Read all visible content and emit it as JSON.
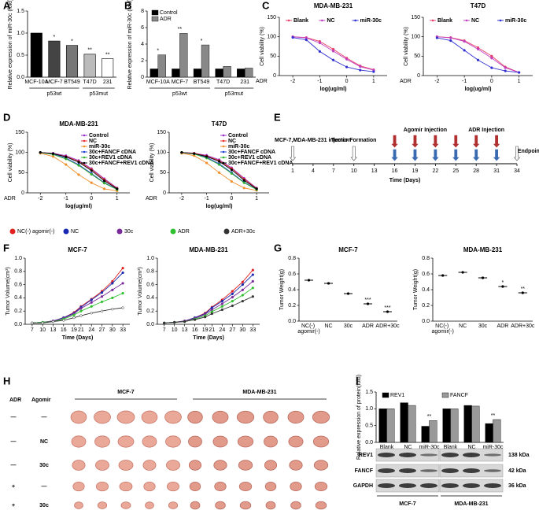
{
  "panels": [
    "A",
    "B",
    "C",
    "D",
    "E",
    "F",
    "G",
    "H",
    "I"
  ],
  "chart_data": [
    {
      "type": "bar",
      "ylabel": "Relative expression of miR-30c (fold)",
      "categories": [
        "MCF-10A",
        "MCF-7",
        "BT549",
        "T47D",
        "231"
      ],
      "values": [
        1.0,
        0.82,
        0.72,
        0.52,
        0.42
      ],
      "colors": [
        "#000000",
        "#444444",
        "#777777",
        "#bbbbbb",
        "#ffffff"
      ],
      "annotations": [
        null,
        "*",
        "*",
        "**",
        "**"
      ],
      "group_labels": [
        "p53wt",
        "p53mut"
      ],
      "ylim": [
        0,
        1.5
      ],
      "yticks": [
        {
          "value": 0,
          "label": "0.0"
        },
        0.5,
        {
          "value": 1,
          "label": "1.0"
        },
        1.5
      ]
    },
    {
      "type": "bar",
      "ylabel": "Relative expression of miR-30c (fold)",
      "categories": [
        "MCF-10A",
        "MCF-7",
        "BT549",
        "T47D",
        "231"
      ],
      "series": [
        {
          "name": "Control",
          "color": "#000000",
          "values": [
            1,
            1,
            1,
            1,
            1
          ]
        },
        {
          "name": "ADR",
          "color": "#888888",
          "values": [
            2.7,
            5.3,
            3.9,
            1.3,
            1.1
          ]
        }
      ],
      "annotations": [
        "*",
        "**",
        "*",
        null,
        null
      ],
      "group_labels": [
        "p53wt",
        "p53mut"
      ],
      "legend": "upper left",
      "ylim": [
        0,
        8
      ],
      "yticks": [
        0,
        2,
        4,
        6,
        8
      ]
    },
    {
      "type": "line",
      "title": "MDA-MB-231",
      "ylabel": "Cell viability (%)",
      "xlabel": "log(ug/ml)",
      "x_note": "ADR",
      "legend": "top",
      "x": [
        -2,
        -1.5,
        -1,
        -0.5,
        0,
        0.5,
        1
      ],
      "series": [
        {
          "name": "Blank",
          "color": "#e8406a",
          "values": [
            100,
            98,
            88,
            68,
            45,
            25,
            15
          ]
        },
        {
          "name": "NC",
          "color": "#c040c0",
          "values": [
            100,
            97,
            84,
            63,
            42,
            23,
            14
          ]
        },
        {
          "name": "miR-30c",
          "color": "#3030d0",
          "values": [
            98,
            92,
            62,
            40,
            22,
            14,
            10
          ]
        }
      ],
      "xlim": [
        -2.5,
        1.5
      ],
      "xticks": [
        -2,
        -1,
        0,
        1
      ],
      "ylim": [
        0,
        150
      ],
      "yticks": [
        0,
        50,
        100,
        150
      ]
    },
    {
      "type": "line",
      "title": "T47D",
      "ylabel": "Cell viability (%)",
      "xlabel": "log(ug/ml)",
      "x_note": "ADR",
      "legend": "top",
      "x": [
        -2,
        -1.5,
        -1,
        -0.5,
        0,
        0.5,
        1
      ],
      "series": [
        {
          "name": "Blank",
          "color": "#e8406a",
          "values": [
            100,
            98,
            90,
            72,
            50,
            22,
            8
          ]
        },
        {
          "name": "NC",
          "color": "#c040c0",
          "values": [
            100,
            97,
            88,
            68,
            45,
            20,
            8
          ]
        },
        {
          "name": "miR-30c",
          "color": "#3030d0",
          "values": [
            97,
            90,
            65,
            40,
            20,
            12,
            8
          ]
        }
      ],
      "xlim": [
        -2.5,
        1.5
      ],
      "xticks": [
        -2,
        -1,
        0,
        1
      ],
      "ylim": [
        0,
        150
      ],
      "yticks": [
        0,
        50,
        100,
        150
      ]
    },
    {
      "type": "line",
      "title": "MDA-MB-231",
      "ylabel": "Cell viability (%)",
      "xlabel": "log(ug/ml)",
      "x_note": "ADR",
      "legend": "upper right",
      "x": [
        -2,
        -1.5,
        -1,
        -0.5,
        0,
        0.5,
        1
      ],
      "series": [
        {
          "name": "Control",
          "color": "#9b30c8",
          "values": [
            100,
            98,
            92,
            80,
            60,
            35,
            12
          ]
        },
        {
          "name": "NC",
          "color": "#e83030",
          "values": [
            100,
            97,
            90,
            78,
            58,
            33,
            11
          ]
        },
        {
          "name": "miR-30c",
          "color": "#f0902a",
          "values": [
            98,
            90,
            70,
            45,
            25,
            10,
            5
          ]
        },
        {
          "name": "30c+FANCF cDNA",
          "color": "#2040d0",
          "values": [
            100,
            96,
            86,
            70,
            48,
            25,
            9
          ]
        },
        {
          "name": "30c+REV1 cDNA",
          "color": "#30b030",
          "values": [
            100,
            95,
            84,
            68,
            46,
            24,
            8
          ]
        },
        {
          "name": "30c+FANCF+REV1 cDNA",
          "color": "#000000",
          "values": [
            100,
            97,
            89,
            76,
            55,
            30,
            10
          ]
        }
      ],
      "xlim": [
        -2.5,
        1.5
      ],
      "xticks": [
        -2,
        -1,
        0,
        1
      ],
      "ylim": [
        0,
        150
      ],
      "yticks": [
        0,
        50,
        100,
        150
      ]
    },
    {
      "type": "line",
      "title": "T47D",
      "ylabel": "Cell viability (%)",
      "xlabel": "log(ug/ml)",
      "x_note": "ADR",
      "legend": "upper right",
      "x": [
        -2,
        -1.5,
        -1,
        -0.5,
        0,
        0.5,
        1
      ],
      "series": [
        {
          "name": "Control",
          "color": "#9b30c8",
          "values": [
            100,
            98,
            93,
            82,
            62,
            36,
            12
          ]
        },
        {
          "name": "NC",
          "color": "#e83030",
          "values": [
            100,
            98,
            91,
            80,
            60,
            34,
            11
          ]
        },
        {
          "name": "miR-30c",
          "color": "#f0902a",
          "values": [
            98,
            92,
            74,
            50,
            28,
            12,
            6
          ]
        },
        {
          "name": "30c+FANCF cDNA",
          "color": "#2040d0",
          "values": [
            100,
            97,
            88,
            72,
            50,
            26,
            9
          ]
        },
        {
          "name": "30c+REV1 cDNA",
          "color": "#30b030",
          "values": [
            100,
            96,
            86,
            70,
            48,
            25,
            8
          ]
        },
        {
          "name": "30c+FANCF+REV1 cDNA",
          "color": "#000000",
          "values": [
            100,
            97,
            90,
            78,
            57,
            31,
            10
          ]
        }
      ],
      "xlim": [
        -2.5,
        1.5
      ],
      "xticks": [
        -2,
        -1,
        0,
        1
      ],
      "ylim": [
        0,
        150
      ],
      "yticks": [
        0,
        50,
        100,
        150
      ]
    },
    {
      "type": "line",
      "title": "MCF-7",
      "ylabel": "Tumor Volume(cm³)",
      "xlabel": "Time (Days)",
      "legend": "above",
      "x": [
        7,
        10,
        13,
        16,
        19,
        21,
        24,
        27,
        30,
        33
      ],
      "series": [
        {
          "name": "NC(-) agomir(-)",
          "color": "#e02020",
          "values": [
            0.02,
            0.03,
            0.05,
            0.1,
            0.18,
            0.27,
            0.38,
            0.5,
            0.65,
            0.85
          ]
        },
        {
          "name": "NC",
          "color": "#1a2ab0",
          "values": [
            0.02,
            0.03,
            0.05,
            0.1,
            0.17,
            0.26,
            0.37,
            0.48,
            0.62,
            0.78
          ]
        },
        {
          "name": "30c",
          "color": "#7a2a9a",
          "values": [
            0.02,
            0.03,
            0.05,
            0.09,
            0.16,
            0.24,
            0.33,
            0.42,
            0.52,
            0.62
          ]
        },
        {
          "name": "ADR",
          "color": "#30c030",
          "values": [
            0.02,
            0.03,
            0.04,
            0.08,
            0.14,
            0.2,
            0.27,
            0.34,
            0.4,
            0.47
          ]
        },
        {
          "name": "ADR+30c",
          "color": "#333333",
          "values": [
            0.02,
            0.02,
            0.04,
            0.06,
            0.1,
            0.13,
            0.17,
            0.2,
            0.23,
            0.25
          ]
        }
      ],
      "xlim": [
        5,
        35
      ],
      "xticks": [
        7,
        10,
        13,
        16,
        19,
        21,
        24,
        27,
        30,
        33
      ],
      "ylim": [
        0,
        1
      ],
      "yticks": [
        {
          "value": 0,
          "label": "0.0"
        },
        0.2,
        0.4,
        0.6,
        0.8,
        {
          "value": 1,
          "label": "1.0"
        }
      ]
    },
    {
      "type": "line",
      "title": "MDA-MB-231",
      "ylabel": "Tumor Volume(cm³)",
      "xlabel": "Time (Days)",
      "x": [
        7,
        10,
        13,
        16,
        19,
        21,
        24,
        27,
        30,
        33
      ],
      "series": [
        {
          "color": "#e02020",
          "values": [
            0.02,
            0.03,
            0.05,
            0.1,
            0.17,
            0.26,
            0.37,
            0.5,
            0.64,
            0.82
          ]
        },
        {
          "color": "#1a2ab0",
          "values": [
            0.02,
            0.03,
            0.05,
            0.1,
            0.16,
            0.25,
            0.35,
            0.46,
            0.6,
            0.75
          ]
        },
        {
          "color": "#7a2a9a",
          "values": [
            0.02,
            0.03,
            0.05,
            0.09,
            0.15,
            0.22,
            0.31,
            0.41,
            0.52,
            0.65
          ]
        },
        {
          "color": "#30c030",
          "values": [
            0.02,
            0.03,
            0.04,
            0.08,
            0.13,
            0.19,
            0.27,
            0.35,
            0.44,
            0.55
          ]
        },
        {
          "color": "#333333",
          "values": [
            0.02,
            0.03,
            0.04,
            0.07,
            0.11,
            0.16,
            0.22,
            0.28,
            0.35,
            0.42
          ]
        }
      ],
      "xlim": [
        5,
        35
      ],
      "xticks": [
        7,
        10,
        13,
        16,
        19,
        21,
        24,
        27,
        30,
        33
      ],
      "ylim": [
        0,
        1
      ],
      "yticks": [
        {
          "value": 0,
          "label": "0.0"
        },
        0.2,
        0.4,
        0.6,
        0.8,
        {
          "value": 1,
          "label": "1.0"
        }
      ]
    },
    {
      "type": "dot",
      "title": "MCF-7",
      "ylabel": "Tumor Weight(g)",
      "color": "#000000",
      "categories": [
        "NC(-) agomir(-)",
        "NC",
        "30c",
        "ADR",
        "ADR+30c"
      ],
      "values": [
        0.52,
        0.48,
        0.35,
        0.22,
        0.12
      ],
      "annotations": [
        null,
        null,
        null,
        "***",
        "***"
      ],
      "ylim": [
        0,
        0.8
      ],
      "yticks": [
        {
          "value": 0,
          "label": "0.0"
        },
        0.2,
        0.4,
        0.6,
        0.8
      ]
    },
    {
      "type": "dot",
      "title": "MDA-MB-231",
      "ylabel": "Tumor Weight(g)",
      "color": "#000000",
      "categories": [
        "NC(-) agomir(-)",
        "NC",
        "30c",
        "ADR",
        "ADR+30c"
      ],
      "values": [
        0.58,
        0.62,
        0.55,
        0.44,
        0.36
      ],
      "annotations": [
        null,
        null,
        null,
        "*",
        "**"
      ],
      "ylim": [
        0,
        0.8
      ],
      "yticks": [
        {
          "value": 0,
          "label": "0.0"
        },
        0.2,
        0.4,
        0.6,
        0.8
      ]
    },
    {
      "type": "bar",
      "ylabel": "Relative expression of protein(fold)",
      "legend": "top",
      "categories": [
        "Blank",
        "NC",
        "miR-30c",
        "Blank",
        "NC",
        "miR-30c"
      ],
      "series": [
        {
          "name": "REV1",
          "color": "#000000",
          "values": [
            1,
            1.18,
            0.48,
            1,
            1.1,
            0.56
          ]
        },
        {
          "name": "FANCF",
          "color": "#999999",
          "values": [
            1,
            1.1,
            0.65,
            1,
            1.08,
            0.68
          ]
        }
      ],
      "annotations": [
        null,
        null,
        "**",
        null,
        null,
        "**"
      ],
      "ylim": [
        0,
        1.5
      ],
      "yticks": [
        {
          "value": 0,
          "label": "0.0"
        },
        0.5,
        {
          "value": 1,
          "label": "1.0"
        },
        1.5
      ]
    }
  ],
  "timeline": {
    "labels": [
      "MCF-7,MDA-MB-231 injection",
      "Tumor Formation",
      "Agomir Injection",
      "ADR Injection",
      "Endpoint"
    ],
    "ticks": [
      1,
      4,
      7,
      10,
      13,
      16,
      19,
      22,
      25,
      28,
      31,
      34
    ],
    "axis_label": "Time (Days)"
  },
  "photo": {
    "col_headers": [
      "ADR",
      "Agomir"
    ],
    "groups": [
      "MCF-7",
      "MDA-MB-231"
    ],
    "rows": [
      [
        "—",
        "—"
      ],
      [
        "—",
        "NC"
      ],
      [
        "—",
        "30c"
      ],
      [
        "+",
        "—"
      ],
      [
        "+",
        "30c"
      ]
    ]
  },
  "blot": {
    "bands": [
      "REV1",
      "FANCF",
      "GAPDH"
    ],
    "sizes": [
      "138 kDa",
      "42 kDa",
      "36 kDa"
    ],
    "cells": [
      "MCF-7",
      "MDA-MB-231"
    ]
  }
}
